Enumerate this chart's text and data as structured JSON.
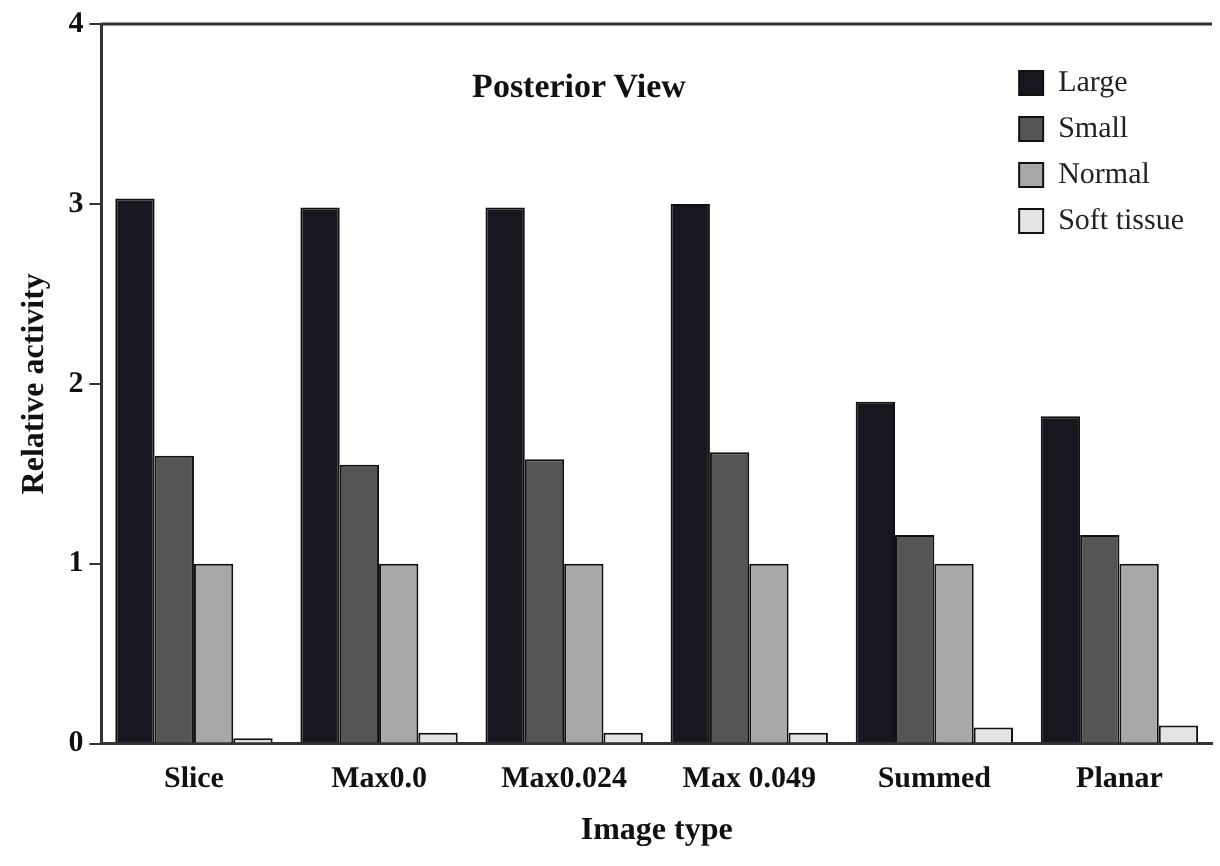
{
  "chart_data": {
    "type": "bar",
    "title": "Posterior View",
    "xlabel": "Image type",
    "ylabel": "Relative activity",
    "categories": [
      "Slice",
      "Max0.0",
      "Max0.024",
      "Max 0.049",
      "Summed",
      "Planar"
    ],
    "series": [
      {
        "name": "Large",
        "color": "#1a1620",
        "values": [
          3.03,
          2.98,
          2.98,
          3.0,
          1.9,
          1.82
        ]
      },
      {
        "name": "Small",
        "color": "#555555",
        "values": [
          1.6,
          1.55,
          1.58,
          1.62,
          1.16,
          1.16
        ]
      },
      {
        "name": "Normal",
        "color": "#a8a8a8",
        "values": [
          1.0,
          1.0,
          1.0,
          1.0,
          1.0,
          1.0
        ]
      },
      {
        "name": "Soft tissue",
        "color": "#e4e4e4",
        "values": [
          0.03,
          0.06,
          0.06,
          0.06,
          0.09,
          0.1
        ]
      }
    ],
    "ylim": [
      0,
      4
    ],
    "yticks": [
      0,
      1,
      2,
      3,
      4
    ],
    "grid": false,
    "legend": "top right"
  }
}
